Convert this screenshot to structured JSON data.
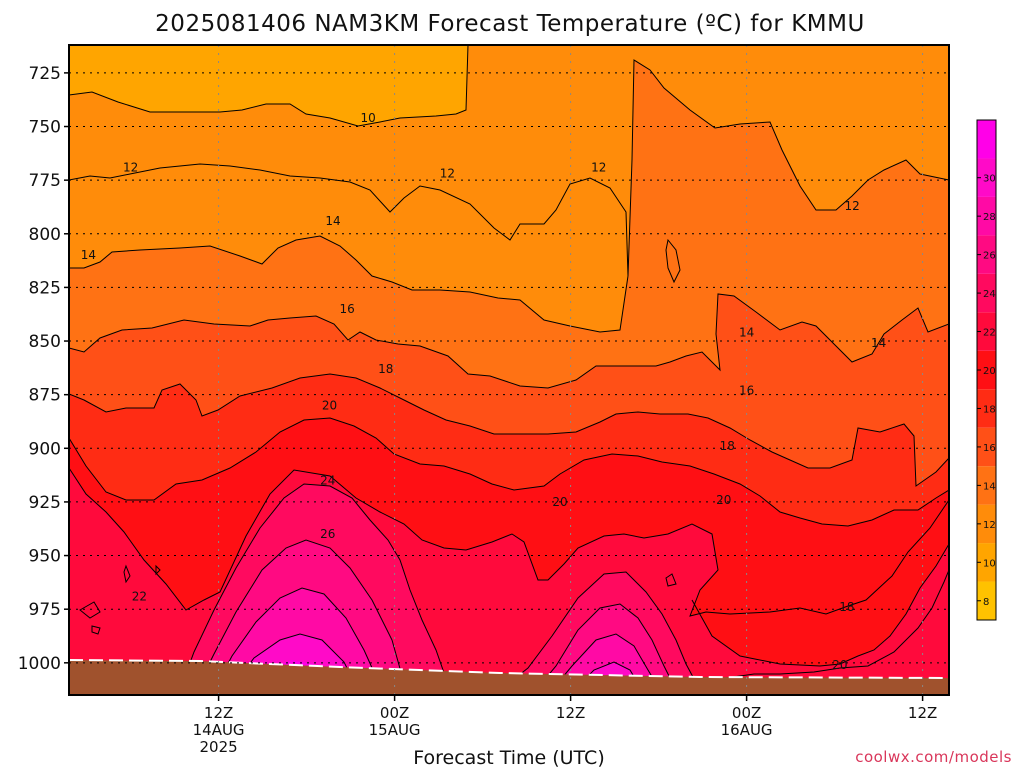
{
  "chart_data": {
    "type": "heatmap",
    "title": "2025081406 NAM3KM Forecast Temperature (ºC) for KMMU",
    "xlabel": "Forecast Time (UTC)",
    "ylabel": "",
    "credit": "coolwx.com/models",
    "y_axis": {
      "quantity": "pressure (mb)",
      "inverted": true,
      "range": [
        712,
        1015
      ],
      "ticks": [
        "725",
        "750",
        "775",
        "800",
        "825",
        "850",
        "875",
        "900",
        "925",
        "950",
        "975",
        "1000"
      ]
    },
    "x_axis": {
      "range_hours": [
        -2.5,
        47.5
      ],
      "ticks": [
        {
          "hour": 6,
          "line1": "12Z",
          "line2": "14AUG",
          "line3": "2025"
        },
        {
          "hour": 16,
          "line1": "00Z",
          "line2": "15AUG",
          "line3": ""
        },
        {
          "hour": 26,
          "line1": "12Z",
          "line2": "",
          "line3": ""
        },
        {
          "hour": 36,
          "line1": "00Z",
          "line2": "16AUG",
          "line3": ""
        },
        {
          "hour": 46,
          "line1": "12Z",
          "line2": "",
          "line3": ""
        }
      ]
    },
    "grid": {
      "horizontal_dotted": true,
      "vertical_dotted": true
    },
    "colorbar": {
      "placement": "right",
      "ticks": [
        "8",
        "10",
        "12",
        "14",
        "16",
        "18",
        "20",
        "22",
        "24",
        "26",
        "28",
        "30"
      ],
      "bins": [
        {
          "from": 7,
          "to": 9,
          "color": "#ffc200"
        },
        {
          "from": 9,
          "to": 11,
          "color": "#ffa500"
        },
        {
          "from": 11,
          "to": 13,
          "color": "#ff8c0a"
        },
        {
          "from": 13,
          "to": 15,
          "color": "#ff7214"
        },
        {
          "from": 15,
          "to": 17,
          "color": "#ff5017"
        },
        {
          "from": 17,
          "to": 19,
          "color": "#ff2c14"
        },
        {
          "from": 19,
          "to": 21,
          "color": "#ff0f14"
        },
        {
          "from": 21,
          "to": 23,
          "color": "#ff0a3c"
        },
        {
          "from": 23,
          "to": 25,
          "color": "#ff0a5f"
        },
        {
          "from": 25,
          "to": 27,
          "color": "#ff0a82"
        },
        {
          "from": 27,
          "to": 29,
          "color": "#ff0aa5"
        },
        {
          "from": 29,
          "to": 31,
          "color": "#ff0ac8"
        },
        {
          "from": 31,
          "to": 33,
          "color": "#ff00e8"
        }
      ]
    },
    "contour_labels": [
      {
        "value": "10",
        "hour": 14.5,
        "p": 746
      },
      {
        "value": "12",
        "hour": 1.0,
        "p": 769
      },
      {
        "value": "12",
        "hour": 19.0,
        "p": 772
      },
      {
        "value": "12",
        "hour": 27.6,
        "p": 769
      },
      {
        "value": "12",
        "hour": 42.0,
        "p": 787
      },
      {
        "value": "14",
        "hour": -1.4,
        "p": 810
      },
      {
        "value": "14",
        "hour": 12.5,
        "p": 794
      },
      {
        "value": "14",
        "hour": 36.0,
        "p": 846
      },
      {
        "value": "14",
        "hour": 43.5,
        "p": 851
      },
      {
        "value": "16",
        "hour": 13.3,
        "p": 835
      },
      {
        "value": "16",
        "hour": 36.0,
        "p": 873
      },
      {
        "value": "18",
        "hour": 15.5,
        "p": 863
      },
      {
        "value": "18",
        "hour": 34.9,
        "p": 899
      },
      {
        "value": "18",
        "hour": 41.7,
        "p": 974
      },
      {
        "value": "20",
        "hour": 12.3,
        "p": 880
      },
      {
        "value": "20",
        "hour": 25.4,
        "p": 925
      },
      {
        "value": "20",
        "hour": 34.7,
        "p": 924
      },
      {
        "value": "20",
        "hour": 41.3,
        "p": 1001
      },
      {
        "value": "22",
        "hour": 1.5,
        "p": 969
      },
      {
        "value": "24",
        "hour": 12.2,
        "p": 915
      },
      {
        "value": "26",
        "hour": 12.2,
        "p": 940
      }
    ],
    "surface": {
      "pressure_at_start": 1000,
      "pressure_at_end": 1008,
      "color": "#a0522d"
    }
  }
}
